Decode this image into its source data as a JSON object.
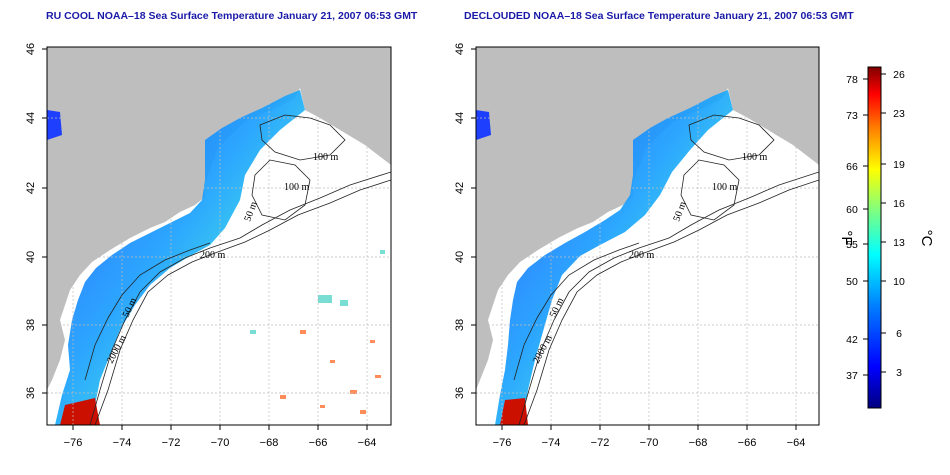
{
  "left_panel": {
    "title": "RU COOL NOAA–18 Sea Surface Temperature January 21, 2007 06:53 GMT",
    "contour_labels": [
      "100 m",
      "100 m",
      "50 m",
      "200 m",
      "50 m",
      "2000 m"
    ]
  },
  "right_panel": {
    "title": "DECLOUDED NOAA–18 Sea Surface Temperature January 21, 2007 06:53 GMT",
    "contour_labels": [
      "100 m",
      "100 m",
      "50 m",
      "200 m",
      "50 m",
      "2000 m"
    ]
  },
  "axes": {
    "x_ticks": [
      "−76",
      "−74",
      "−72",
      "−70",
      "−68",
      "−66",
      "−64"
    ],
    "y_ticks": [
      "36",
      "38",
      "40",
      "42",
      "44",
      "46"
    ]
  },
  "colorbar": {
    "fahrenheit_ticks": [
      "78",
      "73",
      "66",
      "60",
      "55",
      "50",
      "42",
      "37"
    ],
    "celsius_ticks": [
      "26",
      "23",
      "19",
      "16",
      "13",
      "10",
      "6",
      "3"
    ],
    "unit_f": "°F",
    "unit_c": "°C",
    "colors": [
      "#00007f",
      "#0000ff",
      "#007fff",
      "#00ffff",
      "#7fff7f",
      "#ffff00",
      "#ff7f00",
      "#ff0000",
      "#7f0000"
    ]
  },
  "colors": {
    "land": "#bebebe",
    "grid": "#bfbfbf",
    "title": "#1a1aa8"
  }
}
